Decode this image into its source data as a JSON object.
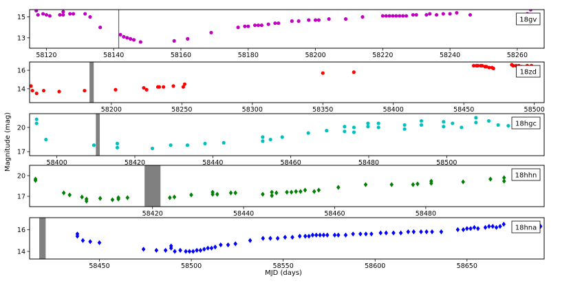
{
  "figure": {
    "ylabel": "Magnitude (mag)",
    "xlabel": "MJD (days)"
  },
  "chart_data": [
    {
      "type": "scatter",
      "label": "18gv",
      "marker": "circle",
      "color": "#c000c0",
      "xlim": [
        58115,
        58268
      ],
      "ylim": [
        15.7,
        12.0
      ],
      "xticks": [
        58120,
        58140,
        58160,
        58180,
        58200,
        58220,
        58240,
        58260
      ],
      "yticks": [
        13,
        15
      ],
      "markers": [
        {
          "x": 58141.5,
          "kind": "line"
        }
      ],
      "points": [
        [
          58117,
          15.6
        ],
        [
          58117.5,
          15.2
        ],
        [
          58119,
          15.3
        ],
        [
          58120,
          15.2
        ],
        [
          58121,
          15.1
        ],
        [
          58124,
          15.2
        ],
        [
          58125,
          15.5
        ],
        [
          58125,
          15.2
        ],
        [
          58127,
          15.3
        ],
        [
          58128,
          15.3
        ],
        [
          58131.5,
          15.3
        ],
        [
          58133,
          15.0
        ],
        [
          58136,
          14.0
        ],
        [
          58142,
          13.3
        ],
        [
          58143,
          13.1
        ],
        [
          58144,
          13.0
        ],
        [
          58145,
          12.9
        ],
        [
          58146,
          12.8
        ],
        [
          58148,
          12.6
        ],
        [
          58158,
          12.7
        ],
        [
          58162,
          12.9
        ],
        [
          58169,
          13.5
        ],
        [
          58177,
          14.0
        ],
        [
          58179,
          14.1
        ],
        [
          58180,
          14.1
        ],
        [
          58182,
          14.2
        ],
        [
          58183,
          14.2
        ],
        [
          58184,
          14.2
        ],
        [
          58186,
          14.3
        ],
        [
          58188,
          14.4
        ],
        [
          58189,
          14.4
        ],
        [
          58193,
          14.6
        ],
        [
          58195,
          14.6
        ],
        [
          58198,
          14.7
        ],
        [
          58200,
          14.7
        ],
        [
          58201,
          14.7
        ],
        [
          58204,
          14.8
        ],
        [
          58209,
          14.8
        ],
        [
          58214,
          15.0
        ],
        [
          58220,
          15.1
        ],
        [
          58221,
          15.1
        ],
        [
          58222,
          15.1
        ],
        [
          58223,
          15.1
        ],
        [
          58224,
          15.1
        ],
        [
          58225,
          15.1
        ],
        [
          58226,
          15.1
        ],
        [
          58227,
          15.1
        ],
        [
          58229,
          15.2
        ],
        [
          58230,
          15.2
        ],
        [
          58233,
          15.2
        ],
        [
          58234,
          15.3
        ],
        [
          58236,
          15.2
        ],
        [
          58238,
          15.3
        ],
        [
          58240,
          15.3
        ],
        [
          58242,
          15.4
        ],
        [
          58246,
          15.2
        ],
        [
          58263,
          15.3
        ],
        [
          58264,
          15.7
        ]
      ]
    },
    {
      "type": "scatter",
      "label": "18zd",
      "marker": "circle",
      "color": "#ff0000",
      "xlim": [
        58142,
        58507
      ],
      "ylim": [
        16.9,
        12.5
      ],
      "xticks": [
        58200,
        58250,
        58300,
        58350,
        58400,
        58450,
        58500
      ],
      "yticks": [
        14,
        16
      ],
      "markers": [
        {
          "x": 58186,
          "kind": "band",
          "width": 3
        }
      ],
      "points": [
        [
          58143,
          14.3
        ],
        [
          58144,
          13.8
        ],
        [
          58147,
          13.5
        ],
        [
          58152,
          13.8
        ],
        [
          58163,
          13.7
        ],
        [
          58181,
          13.8
        ],
        [
          58203,
          13.9
        ],
        [
          58223,
          14.1
        ],
        [
          58225,
          13.9
        ],
        [
          58233,
          14.2
        ],
        [
          58234,
          14.2
        ],
        [
          58237,
          14.2
        ],
        [
          58244,
          14.3
        ],
        [
          58251,
          14.2
        ],
        [
          58252,
          14.5
        ],
        [
          58350,
          15.7
        ],
        [
          58372,
          15.8
        ],
        [
          58457,
          16.5
        ],
        [
          58459,
          16.5
        ],
        [
          58460,
          16.5
        ],
        [
          58462,
          16.5
        ],
        [
          58463,
          16.5
        ],
        [
          58465,
          16.4
        ],
        [
          58466,
          16.4
        ],
        [
          58468,
          16.3
        ],
        [
          58470,
          16.3
        ],
        [
          58471,
          16.2
        ],
        [
          58484,
          16.6
        ],
        [
          58485,
          16.5
        ],
        [
          58487,
          16.5
        ],
        [
          58489,
          16.5
        ],
        [
          58491,
          16.4
        ],
        [
          58495,
          16.5
        ],
        [
          58498,
          16.5
        ],
        [
          58499,
          16.3
        ]
      ]
    },
    {
      "type": "scatter",
      "label": "18hgc",
      "marker": "circle",
      "color": "#00bfbf",
      "xlim": [
        58393,
        58525
      ],
      "ylim": [
        21.7,
        16.5
      ],
      "xticks": [
        58400,
        58420,
        58440,
        58460,
        58480,
        58500
      ],
      "yticks": [
        17,
        20
      ],
      "markers": [
        {
          "x": 58410.5,
          "kind": "band",
          "width": 1
        }
      ],
      "points": [
        [
          58394.8,
          21.0
        ],
        [
          58394.8,
          20.5
        ],
        [
          58397.2,
          18.5
        ],
        [
          58409.5,
          17.8
        ],
        [
          58415.5,
          17.5
        ],
        [
          58415.5,
          18.0
        ],
        [
          58424.5,
          17.4
        ],
        [
          58429.2,
          17.8
        ],
        [
          58433.5,
          17.8
        ],
        [
          58438,
          18.0
        ],
        [
          58442.8,
          18.1
        ],
        [
          58452.8,
          18.3
        ],
        [
          58452.8,
          18.8
        ],
        [
          58454.8,
          18.5
        ],
        [
          58457.8,
          18.8
        ],
        [
          58464.5,
          19.3
        ],
        [
          58469.2,
          19.6
        ],
        [
          58473.8,
          19.5
        ],
        [
          58473.8,
          20.1
        ],
        [
          58476.2,
          19.4
        ],
        [
          58476.2,
          20.0
        ],
        [
          58479.8,
          20.1
        ],
        [
          58479.8,
          20.5
        ],
        [
          58482.5,
          20.0
        ],
        [
          58482.5,
          20.5
        ],
        [
          58489.2,
          19.8
        ],
        [
          58489.2,
          20.3
        ],
        [
          58493.5,
          20.3
        ],
        [
          58493.5,
          20.8
        ],
        [
          58499.2,
          20.1
        ],
        [
          58499.2,
          20.7
        ],
        [
          58501.5,
          20.5
        ],
        [
          58503.8,
          20.0
        ],
        [
          58507.5,
          20.6
        ],
        [
          58507.5,
          21.2
        ],
        [
          58510.8,
          20.8
        ],
        [
          58513.2,
          20.3
        ],
        [
          58515.8,
          20.2
        ],
        [
          58520,
          20.3
        ],
        [
          58520,
          20.8
        ]
      ]
    },
    {
      "type": "scatter",
      "label": "18hhn",
      "marker": "diamond",
      "color": "#008000",
      "xlim": [
        58393,
        58506
      ],
      "ylim": [
        21.5,
        15.5
      ],
      "xticks": [
        58420,
        58440,
        58460,
        58480
      ],
      "yticks": [
        17,
        20
      ],
      "markers": [
        {
          "x": 58420,
          "kind": "band",
          "width": 3.5
        }
      ],
      "points": [
        [
          58394.3,
          19.5
        ],
        [
          58394.3,
          19.3
        ],
        [
          58400.5,
          17.5
        ],
        [
          58401.8,
          17.2
        ],
        [
          58404.5,
          16.9
        ],
        [
          58405.5,
          16.3
        ],
        [
          58405.5,
          16.6
        ],
        [
          58408.5,
          16.7
        ],
        [
          58411.2,
          16.5
        ],
        [
          58412.5,
          16.6
        ],
        [
          58412.5,
          16.8
        ],
        [
          58414.5,
          16.8
        ],
        [
          58423.8,
          16.8
        ],
        [
          58424.8,
          16.9
        ],
        [
          58428.5,
          17.2
        ],
        [
          58433.2,
          17.3
        ],
        [
          58433.2,
          17.6
        ],
        [
          58434.2,
          17.3
        ],
        [
          58437.2,
          17.5
        ],
        [
          58438.2,
          17.5
        ],
        [
          58444.2,
          17.3
        ],
        [
          58446.2,
          17.1
        ],
        [
          58446.2,
          17.6
        ],
        [
          58447.2,
          17.5
        ],
        [
          58449.5,
          17.6
        ],
        [
          58450.5,
          17.6
        ],
        [
          58451.5,
          17.7
        ],
        [
          58452.5,
          17.7
        ],
        [
          58453.5,
          17.9
        ],
        [
          58455.5,
          17.7
        ],
        [
          58456.5,
          17.9
        ],
        [
          58460.8,
          18.3
        ],
        [
          58466.8,
          18.7
        ],
        [
          58472.5,
          18.7
        ],
        [
          58477.2,
          18.7
        ],
        [
          58478.2,
          18.8
        ],
        [
          58481.2,
          18.9
        ],
        [
          58481.2,
          19.2
        ],
        [
          58488.2,
          19.1
        ],
        [
          58494.2,
          19.5
        ],
        [
          58497.2,
          19.2
        ],
        [
          58497.2,
          19.7
        ],
        [
          58501.5,
          19.8
        ],
        [
          58501.5,
          20.2
        ]
      ]
    },
    {
      "type": "scatter",
      "label": "18hna",
      "marker": "diamond",
      "color": "#0000ff",
      "xlim": [
        58412,
        58692
      ],
      "ylim": [
        17.1,
        13.3
      ],
      "xticks": [
        58450,
        58500,
        58550,
        58600,
        58650
      ],
      "yticks": [
        14,
        16
      ],
      "markers": [
        {
          "x": 58419,
          "kind": "band",
          "width": 3.5
        }
      ],
      "points": [
        [
          58438,
          15.6
        ],
        [
          58438,
          15.4
        ],
        [
          58441,
          15.0
        ],
        [
          58445,
          14.9
        ],
        [
          58450,
          14.8
        ],
        [
          58474,
          14.2
        ],
        [
          58481,
          14.1
        ],
        [
          58486,
          14.1
        ],
        [
          58489,
          14.3
        ],
        [
          58489,
          14.5
        ],
        [
          58491,
          14.0
        ],
        [
          58494,
          14.1
        ],
        [
          58497,
          14.0
        ],
        [
          58499,
          14.0
        ],
        [
          58501,
          14.0
        ],
        [
          58503,
          14.1
        ],
        [
          58505,
          14.1
        ],
        [
          58507,
          14.2
        ],
        [
          58509,
          14.3
        ],
        [
          58511,
          14.3
        ],
        [
          58513,
          14.4
        ],
        [
          58516,
          14.6
        ],
        [
          58520,
          14.6
        ],
        [
          58524,
          14.7
        ],
        [
          58532,
          15.0
        ],
        [
          58539,
          15.2
        ],
        [
          58543,
          15.2
        ],
        [
          58547,
          15.2
        ],
        [
          58551,
          15.3
        ],
        [
          58555,
          15.3
        ],
        [
          58559,
          15.4
        ],
        [
          58562,
          15.4
        ],
        [
          58564,
          15.4
        ],
        [
          58566,
          15.5
        ],
        [
          58568,
          15.5
        ],
        [
          58570,
          15.5
        ],
        [
          58572,
          15.5
        ],
        [
          58574,
          15.5
        ],
        [
          58578,
          15.5
        ],
        [
          58580,
          15.5
        ],
        [
          58584,
          15.5
        ],
        [
          58588,
          15.6
        ],
        [
          58592,
          15.6
        ],
        [
          58595,
          15.6
        ],
        [
          58598,
          15.6
        ],
        [
          58603,
          15.7
        ],
        [
          58606,
          15.7
        ],
        [
          58610,
          15.7
        ],
        [
          58614,
          15.7
        ],
        [
          58618,
          15.8
        ],
        [
          58621,
          15.8
        ],
        [
          58625,
          15.8
        ],
        [
          58628,
          15.8
        ],
        [
          58631,
          15.8
        ],
        [
          58636,
          15.8
        ],
        [
          58645,
          16.0
        ],
        [
          58648,
          16.0
        ],
        [
          58650,
          16.1
        ],
        [
          58652,
          16.1
        ],
        [
          58654,
          16.2
        ],
        [
          58656,
          16.1
        ],
        [
          58660,
          16.2
        ],
        [
          58662,
          16.3
        ],
        [
          58664,
          16.3
        ],
        [
          58666,
          16.2
        ],
        [
          58668,
          16.3
        ],
        [
          58670,
          16.5
        ],
        [
          58690,
          16.3
        ]
      ]
    }
  ]
}
